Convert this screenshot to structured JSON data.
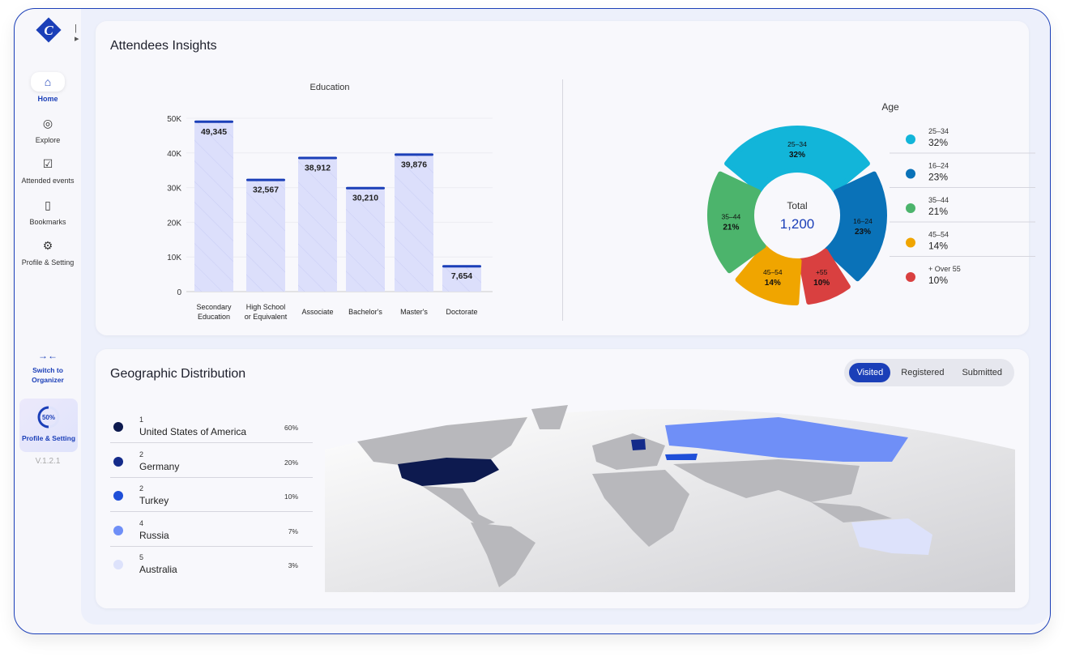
{
  "sidebar": {
    "items": [
      {
        "label": "Home",
        "icon": "home-icon",
        "active": true
      },
      {
        "label": "Explore",
        "icon": "compass-icon"
      },
      {
        "label": "Attended events",
        "icon": "shield-check-icon"
      },
      {
        "label": "Bookmarks",
        "icon": "bookmark-icon"
      },
      {
        "label": "Profile & Setting",
        "icon": "user-gear-icon"
      }
    ],
    "switch_label": "Switch to Organizer",
    "profile_progress": "50%",
    "profile_progress_value": 50,
    "profile_label": "Profile & Setting",
    "version": "V.1.2.1"
  },
  "insights": {
    "title": "Attendees Insights"
  },
  "chart_data": [
    {
      "type": "bar",
      "title": "Education",
      "categories": [
        "Secondary Education",
        "High School or Equivalent",
        "Associate",
        "Bachelor's",
        "Master's",
        "Doctorate"
      ],
      "values": [
        49345,
        32567,
        38912,
        30210,
        39876,
        7654
      ],
      "labels": [
        "49,345",
        "32,567",
        "38,912",
        "30,210",
        "39,876",
        "7,654"
      ],
      "ylim": [
        0,
        50000
      ],
      "yticks": [
        "0",
        "10K",
        "20K",
        "30K",
        "40K",
        "50K"
      ],
      "grid": true,
      "color": "#dcdffb",
      "accent": "#1b3fb8"
    },
    {
      "type": "pie",
      "title": "Age",
      "center_label": "Total",
      "center_value": "1,200",
      "slices": [
        {
          "label": "25–34",
          "percent": 32,
          "pct_label": "32%",
          "count": 390,
          "color": "#12b5d9",
          "legend": "25–34"
        },
        {
          "label": "16–24",
          "percent": 23,
          "pct_label": "23%",
          "count": 270,
          "color": "#0a72b8",
          "legend": "16–24"
        },
        {
          "label": "+55",
          "percent": 10,
          "pct_label": "10%",
          "count": 120,
          "color": "#d94040",
          "legend": "+ Over 55"
        },
        {
          "label": "45–54",
          "percent": 14,
          "pct_label": "14%",
          "count": 168,
          "color": "#f0a500",
          "legend": "45–54"
        },
        {
          "label": "35–44",
          "percent": 21,
          "pct_label": "21%",
          "count": 252,
          "color": "#4cb46c",
          "legend": "35–44"
        }
      ]
    }
  ],
  "age_legend_order": [
    0,
    1,
    4,
    3,
    2
  ],
  "geo": {
    "title": "Geographic Distribution",
    "tabs": [
      "Visited",
      "Registered",
      "Submitted"
    ],
    "active_tab": "Visited",
    "countries": [
      {
        "rank": "1",
        "name": "United States of America",
        "pct": "60%",
        "color": "#0d1a4f"
      },
      {
        "rank": "2",
        "name": "Germany",
        "pct": "20%",
        "color": "#142b8a"
      },
      {
        "rank": "2",
        "name": "Turkey",
        "pct": "10%",
        "color": "#1f4fd8"
      },
      {
        "rank": "4",
        "name": "Russia",
        "pct": "7%",
        "color": "#6f8ff7"
      },
      {
        "rank": "5",
        "name": "Australia",
        "pct": "3%",
        "color": "#dde2fb"
      }
    ]
  }
}
